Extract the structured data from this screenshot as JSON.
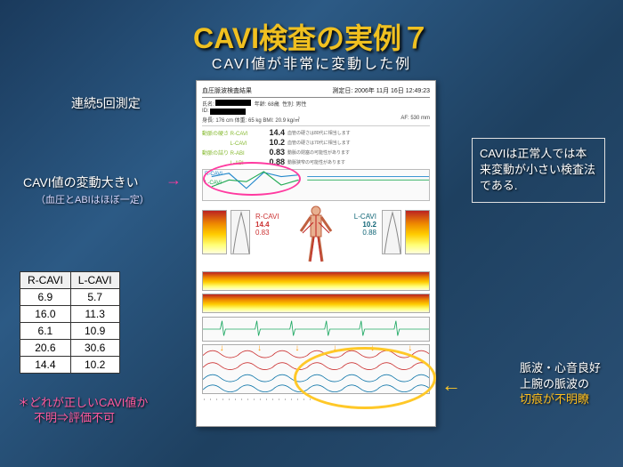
{
  "title": "CAVI検査の実例７",
  "subtitle": "CAVI値が非常に変動した例",
  "left": {
    "repeat_label": "連続5回測定",
    "fluct_label": "CAVI値の変動大きい",
    "fluct_sub": "（血圧とABIはほぼ一定）"
  },
  "table": {
    "headers": [
      "R-CAVI",
      "L-CAVI"
    ],
    "rows": [
      [
        "6.9",
        "5.7"
      ],
      [
        "16.0",
        "11.3"
      ],
      [
        "6.1",
        "10.9"
      ],
      [
        "20.6",
        "30.6"
      ],
      [
        "14.4",
        "10.2"
      ]
    ]
  },
  "footnote": {
    "star": "＊どれが正しいCAVI値か",
    "line2": "不明⇒評価不可"
  },
  "right": {
    "box": "CAVIは正常人では本来変動が小さい検査法である.",
    "note1": "脈波・心音良好",
    "note2": "上腕の脈波の",
    "note3": "切痕が不明瞭"
  },
  "report": {
    "hdr_left": "血圧脈波検査結果",
    "hdr_right": "測定日: 2006年 11月 16日  12:49:23",
    "name_lbl": "氏名:",
    "id_lbl": "ID:",
    "age_lbl": "年齢: 68歳",
    "sex_lbl": "性別: 男性",
    "ht": "身長: 176 cm 体重: 65 kg BMI: 20.9 kg/㎡",
    "af": "AF: 530 mm",
    "metrics": [
      {
        "nm": "動脈の硬さ R-CAVI",
        "vl": "14.4"
      },
      {
        "nm": "　　　　　 L-CAVI",
        "vl": "10.2"
      },
      {
        "nm": "動脈の詰り R-ABI",
        "vl": "0.83"
      },
      {
        "nm": "　　　　　 L-ABI",
        "vl": "0.88"
      }
    ],
    "metric_txts": [
      "血管の硬さは80代に相当します",
      "血管の硬さは70代に相当します",
      "動脈の閉塞の可能性があります",
      "動脈狭窄の可能性があります"
    ],
    "trend_lbl_r": "R-CAVI",
    "trend_lbl_l": "L-CAVI",
    "mini_r": {
      "lbl": "R-CAVI",
      "val": "14.4",
      "abi": "0.83"
    },
    "mini_l": {
      "lbl": "L-CAVI",
      "val": "10.2",
      "abi": "0.88"
    },
    "strip_lbls": [
      "R",
      "L",
      "PWV"
    ]
  },
  "colors": {
    "pink": "#ff3aa0",
    "yellow": "#ffc828"
  }
}
